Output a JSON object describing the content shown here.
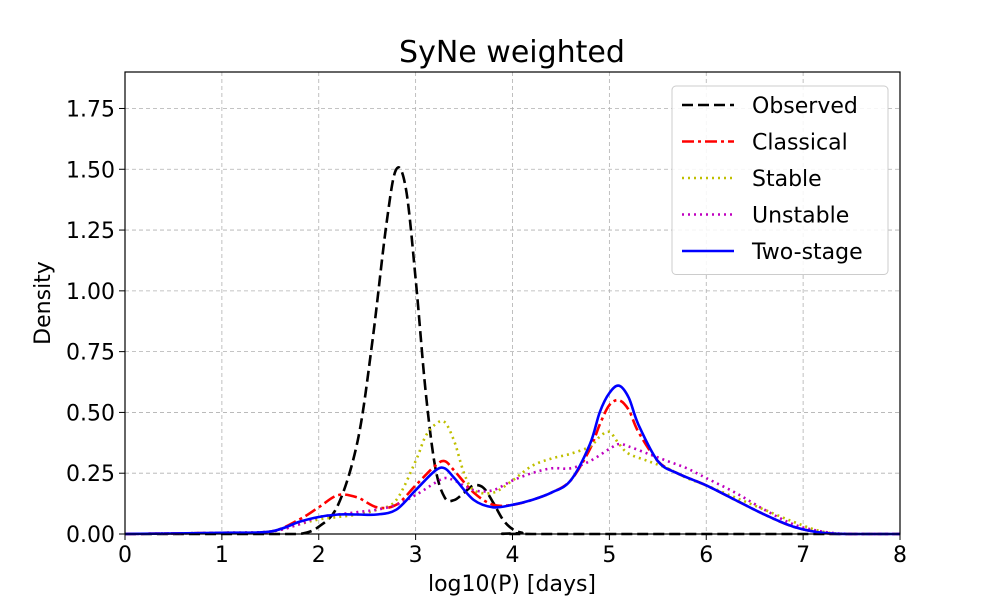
{
  "chart_data": {
    "type": "line",
    "title": "SyNe weighted",
    "xlabel": "log10(P) [days]",
    "ylabel": "Density",
    "xlim": [
      0,
      8
    ],
    "ylim": [
      0,
      1.9
    ],
    "xticks": [
      "0",
      "1",
      "2",
      "3",
      "4",
      "5",
      "6",
      "7",
      "8"
    ],
    "yticks": [
      "0.00",
      "0.25",
      "0.50",
      "0.75",
      "1.00",
      "1.25",
      "1.50",
      "1.75"
    ],
    "grid": true,
    "legend_position": "top-right",
    "series": [
      {
        "name": "Observed",
        "color": "#000000",
        "style": "dashed",
        "x": [
          0,
          1.5,
          1.8,
          2.0,
          2.2,
          2.4,
          2.55,
          2.7,
          2.8,
          2.9,
          3.0,
          3.1,
          3.2,
          3.3,
          3.4,
          3.5,
          3.6,
          3.7,
          3.8,
          3.9,
          4.0,
          4.1,
          4.2,
          8.0
        ],
        "y": [
          0,
          0,
          0.0,
          0.03,
          0.12,
          0.38,
          0.78,
          1.28,
          1.5,
          1.42,
          1.05,
          0.6,
          0.28,
          0.15,
          0.14,
          0.17,
          0.2,
          0.19,
          0.13,
          0.06,
          0.02,
          0.005,
          0,
          0
        ]
      },
      {
        "name": "Classical",
        "color": "#ff0000",
        "style": "dashdot",
        "x": [
          0,
          1.0,
          1.5,
          1.8,
          2.0,
          2.2,
          2.4,
          2.6,
          2.8,
          3.0,
          3.2,
          3.3,
          3.4,
          3.6,
          3.8,
          4.0,
          4.2,
          4.4,
          4.6,
          4.8,
          4.9,
          5.0,
          5.1,
          5.2,
          5.3,
          5.5,
          5.7,
          6.0,
          6.3,
          6.6,
          6.9,
          7.2,
          7.5,
          8.0
        ],
        "y": [
          0,
          0.005,
          0.01,
          0.06,
          0.11,
          0.16,
          0.15,
          0.11,
          0.12,
          0.2,
          0.28,
          0.3,
          0.26,
          0.17,
          0.12,
          0.12,
          0.14,
          0.17,
          0.22,
          0.35,
          0.45,
          0.53,
          0.55,
          0.51,
          0.42,
          0.3,
          0.25,
          0.2,
          0.14,
          0.08,
          0.03,
          0.005,
          0,
          0
        ]
      },
      {
        "name": "Stable",
        "color": "#bfbf00",
        "style": "dotted",
        "x": [
          0,
          1.0,
          1.5,
          1.8,
          2.0,
          2.2,
          2.4,
          2.6,
          2.8,
          3.0,
          3.1,
          3.2,
          3.3,
          3.4,
          3.5,
          3.6,
          3.8,
          4.0,
          4.2,
          4.4,
          4.6,
          4.8,
          4.9,
          5.0,
          5.1,
          5.2,
          5.4,
          5.6,
          5.8,
          6.0,
          6.3,
          6.6,
          6.9,
          7.2,
          7.5,
          8.0
        ],
        "y": [
          0,
          0.005,
          0.01,
          0.04,
          0.06,
          0.07,
          0.08,
          0.1,
          0.14,
          0.3,
          0.4,
          0.45,
          0.46,
          0.38,
          0.25,
          0.18,
          0.17,
          0.22,
          0.28,
          0.31,
          0.33,
          0.36,
          0.4,
          0.42,
          0.37,
          0.33,
          0.3,
          0.27,
          0.23,
          0.2,
          0.15,
          0.1,
          0.05,
          0.01,
          0,
          0
        ]
      },
      {
        "name": "Unstable",
        "color": "#bf00bf",
        "style": "dotted",
        "x": [
          0,
          1.0,
          1.5,
          1.8,
          2.0,
          2.2,
          2.4,
          2.6,
          2.8,
          3.0,
          3.2,
          3.3,
          3.4,
          3.6,
          3.8,
          4.0,
          4.2,
          4.4,
          4.6,
          4.8,
          5.0,
          5.1,
          5.2,
          5.4,
          5.6,
          5.8,
          6.0,
          6.3,
          6.6,
          6.9,
          7.2,
          7.5,
          8.0
        ],
        "y": [
          0,
          0.005,
          0.01,
          0.04,
          0.07,
          0.08,
          0.09,
          0.1,
          0.12,
          0.16,
          0.21,
          0.23,
          0.22,
          0.18,
          0.18,
          0.22,
          0.25,
          0.27,
          0.27,
          0.3,
          0.35,
          0.37,
          0.36,
          0.33,
          0.3,
          0.27,
          0.23,
          0.17,
          0.1,
          0.04,
          0.01,
          0,
          0
        ]
      },
      {
        "name": "Two-stage",
        "color": "#0000ff",
        "style": "solid",
        "x": [
          0,
          1.0,
          1.5,
          1.8,
          2.0,
          2.2,
          2.4,
          2.6,
          2.8,
          3.0,
          3.2,
          3.3,
          3.4,
          3.6,
          3.8,
          4.0,
          4.2,
          4.4,
          4.6,
          4.8,
          4.9,
          5.0,
          5.1,
          5.2,
          5.3,
          5.5,
          5.7,
          6.0,
          6.3,
          6.6,
          6.9,
          7.2,
          7.5,
          8.0
        ],
        "y": [
          0,
          0.005,
          0.01,
          0.05,
          0.07,
          0.08,
          0.08,
          0.08,
          0.1,
          0.18,
          0.26,
          0.27,
          0.23,
          0.14,
          0.11,
          0.12,
          0.14,
          0.17,
          0.22,
          0.37,
          0.5,
          0.58,
          0.61,
          0.56,
          0.45,
          0.3,
          0.25,
          0.2,
          0.14,
          0.08,
          0.03,
          0.005,
          0,
          0
        ]
      }
    ]
  }
}
